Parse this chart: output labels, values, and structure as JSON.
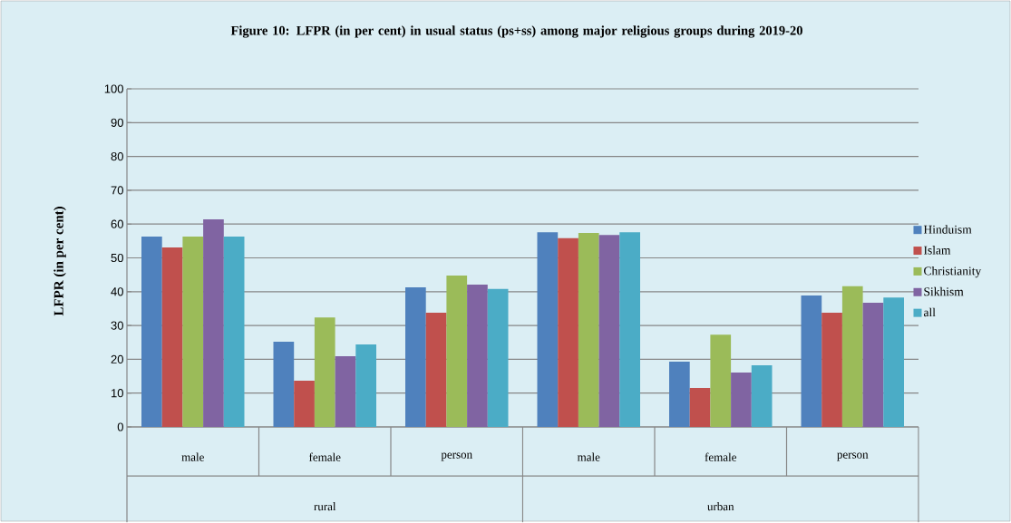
{
  "chart_data": {
    "type": "bar",
    "title": "Figure 10:  LFPR (in per cent) in usual status (ps+ss)  among major religious groups during  2019-20",
    "ylabel": "LFPR (in per cent)",
    "categories": [
      "male",
      "female",
      "person",
      "male",
      "female",
      "person"
    ],
    "annotations": [
      "rural",
      "urban"
    ],
    "series": [
      {
        "name": "Hinduism",
        "color": "#4f81bd",
        "values": [
          56.3,
          25.2,
          41.3,
          57.6,
          19.3,
          38.9
        ]
      },
      {
        "name": "Islam",
        "color": "#c0504d",
        "values": [
          53.1,
          13.7,
          33.8,
          55.8,
          11.5,
          33.8
        ]
      },
      {
        "name": "Christianity",
        "color": "#9bbb59",
        "values": [
          56.3,
          32.4,
          44.8,
          57.4,
          27.3,
          41.6
        ]
      },
      {
        "name": "Sikhism",
        "color": "#8064a2",
        "values": [
          61.4,
          20.9,
          42.1,
          56.8,
          16.1,
          36.7
        ]
      },
      {
        "name": "all",
        "color": "#4bacc6",
        "values": [
          56.3,
          24.4,
          40.8,
          57.6,
          18.2,
          38.3
        ]
      }
    ],
    "ylim": [
      0,
      100
    ],
    "yticks": [
      0,
      10,
      20,
      30,
      40,
      50,
      60,
      70,
      80,
      90,
      100
    ],
    "grid": "y",
    "legend": "right"
  }
}
